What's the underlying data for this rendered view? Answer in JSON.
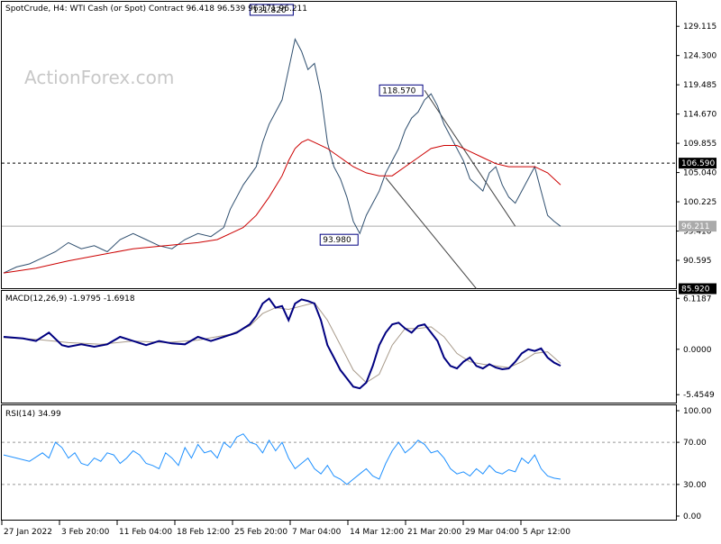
{
  "chart_data": [
    {
      "type": "line",
      "header": "SpotCrude, H4:  WTI Cash (or Spot) Contract  96.418 96.539 96.171 96.211",
      "watermark": "ActionForex.com",
      "ylim": [
        86.0,
        133.0
      ],
      "y_ticks": [
        129.115,
        124.3,
        119.485,
        114.67,
        109.855,
        105.04,
        100.225,
        95.41,
        90.595
      ],
      "x_ticks": [
        "27 Jan 2022",
        "3 Feb 20:00",
        "11 Feb 04:00",
        "18 Feb 12:00",
        "25 Feb 20:00",
        "7 Mar 04:00",
        "14 Mar 12:00",
        "21 Mar 20:00",
        "29 Mar 04:00",
        "5 Apr 12:00"
      ],
      "last_price": 96.211,
      "resistance": 106.59,
      "support": 85.92,
      "annotations": [
        {
          "label": "131.820",
          "value": 131.82,
          "x_bar": 90
        },
        {
          "label": "93.980",
          "value": 93.98,
          "x_bar": 110
        },
        {
          "label": "118.570",
          "value": 118.57,
          "x_bar": 130
        }
      ],
      "series": [
        {
          "kind": "price",
          "color": "#2f4f6f",
          "x": [
            0,
            4,
            8,
            12,
            16,
            20,
            24,
            28,
            32,
            36,
            40,
            44,
            48,
            52,
            56,
            60,
            64,
            68,
            70,
            74,
            78,
            80,
            82,
            86,
            88,
            90,
            92,
            94,
            96,
            98,
            100,
            102,
            104,
            106,
            108,
            110,
            112,
            114,
            116,
            118,
            120,
            122,
            124,
            126,
            128,
            130,
            132,
            134,
            136,
            138,
            140,
            142,
            144,
            146,
            148,
            150,
            152,
            154,
            156,
            158,
            160,
            162,
            164,
            166,
            168,
            170,
            172
          ],
          "values": [
            88.5,
            89.5,
            90,
            91,
            92,
            93.5,
            92.5,
            93,
            92,
            94,
            95,
            94,
            93,
            92.5,
            94,
            95,
            94.5,
            96,
            99,
            103,
            106,
            110,
            113,
            117,
            122,
            127,
            125,
            122,
            123,
            118,
            110,
            106,
            104,
            101,
            97,
            95,
            98,
            100,
            102,
            105,
            107,
            109,
            112,
            114,
            115,
            117,
            118,
            116,
            113,
            111,
            109,
            107,
            104,
            103,
            102,
            105,
            106,
            103,
            101,
            100,
            102,
            104,
            106,
            102,
            98,
            97,
            96.2
          ]
        },
        {
          "kind": "ma",
          "color": "#cc0000",
          "x": [
            0,
            10,
            20,
            30,
            40,
            50,
            60,
            66,
            70,
            74,
            78,
            82,
            86,
            88,
            90,
            92,
            94,
            96,
            100,
            104,
            108,
            112,
            116,
            120,
            124,
            128,
            132,
            136,
            140,
            144,
            148,
            152,
            156,
            160,
            164,
            168,
            172
          ],
          "values": [
            88.5,
            89.3,
            90.5,
            91.5,
            92.5,
            93,
            93.5,
            94,
            95,
            96,
            98,
            101,
            104.5,
            107,
            109,
            110,
            110.5,
            110,
            109,
            107.5,
            106,
            105,
            104.5,
            104.5,
            106,
            107.5,
            109,
            109.5,
            109.5,
            108.5,
            107.5,
            106.5,
            106,
            106,
            106,
            105,
            103
          ]
        },
        {
          "kind": "channel",
          "color": "#444444",
          "x": [
            130,
            158
          ],
          "values": [
            118.57,
            96.2
          ]
        },
        {
          "kind": "channel",
          "color": "#444444",
          "x": [
            118,
            146
          ],
          "values": [
            104.2,
            85.92
          ]
        }
      ]
    },
    {
      "type": "line",
      "header": "MACD(12,26,9) -1.9795 -1.6918",
      "ylim": [
        -6.3,
        6.8
      ],
      "y_ticks": [
        6.1187,
        0.0,
        -5.4549
      ],
      "series": [
        {
          "kind": "macd",
          "color": "#000080",
          "x": [
            0,
            6,
            10,
            14,
            18,
            20,
            24,
            28,
            32,
            36,
            40,
            44,
            48,
            52,
            56,
            60,
            64,
            68,
            72,
            76,
            78,
            80,
            82,
            84,
            86,
            88,
            90,
            92,
            94,
            96,
            98,
            100,
            102,
            104,
            106,
            108,
            110,
            112,
            114,
            116,
            118,
            120,
            122,
            124,
            126,
            128,
            130,
            132,
            134,
            136,
            138,
            140,
            142,
            144,
            146,
            148,
            150,
            152,
            154,
            156,
            158,
            160,
            162,
            164,
            166,
            168,
            170,
            172
          ],
          "values": [
            1.5,
            1.3,
            1.0,
            2.0,
            0.5,
            0.3,
            0.6,
            0.3,
            0.6,
            1.5,
            1.0,
            0.5,
            1.0,
            0.7,
            0.6,
            1.5,
            1.0,
            1.5,
            2.0,
            3.0,
            4.0,
            5.5,
            6.1,
            5.0,
            5.2,
            3.5,
            5.5,
            6.0,
            5.8,
            5.5,
            3.5,
            0.5,
            -1.0,
            -2.5,
            -3.5,
            -4.5,
            -4.7,
            -4.0,
            -2.0,
            0.5,
            2.0,
            3.0,
            3.2,
            2.5,
            2.0,
            2.8,
            3.0,
            2.0,
            1.0,
            -1.0,
            -2.0,
            -2.3,
            -1.5,
            -1.0,
            -2.0,
            -2.3,
            -1.8,
            -2.2,
            -2.4,
            -2.3,
            -1.5,
            -0.5,
            0.0,
            -0.2,
            0.1,
            -1.0,
            -1.6,
            -1.98
          ]
        },
        {
          "kind": "signal",
          "color": "#a89a8a",
          "x": [
            0,
            10,
            20,
            30,
            40,
            50,
            60,
            70,
            76,
            80,
            84,
            88,
            92,
            96,
            100,
            104,
            108,
            112,
            116,
            120,
            124,
            128,
            132,
            136,
            140,
            144,
            148,
            152,
            156,
            160,
            164,
            168,
            172
          ],
          "values": [
            1.4,
            1.2,
            0.8,
            0.6,
            1.0,
            0.8,
            1.1,
            1.8,
            2.8,
            4.3,
            5.0,
            4.8,
            5.2,
            5.6,
            3.5,
            0.5,
            -2.5,
            -4.0,
            -3.0,
            0.5,
            2.5,
            2.5,
            2.7,
            1.5,
            -0.5,
            -1.5,
            -1.8,
            -2.0,
            -2.2,
            -1.5,
            -0.5,
            -0.3,
            -1.69
          ]
        }
      ]
    },
    {
      "type": "line",
      "header": "RSI(14) 34.99",
      "ylim": [
        0,
        100
      ],
      "y_ticks": [
        100.0,
        70.0,
        30.0,
        0.0
      ],
      "levels": [
        70,
        30
      ],
      "series": [
        {
          "kind": "rsi",
          "color": "#1e90ff",
          "x": [
            0,
            4,
            8,
            12,
            14,
            16,
            18,
            20,
            22,
            24,
            26,
            28,
            30,
            32,
            34,
            36,
            38,
            40,
            42,
            44,
            46,
            48,
            50,
            52,
            54,
            56,
            58,
            60,
            62,
            64,
            66,
            68,
            70,
            72,
            74,
            76,
            78,
            80,
            82,
            84,
            86,
            88,
            90,
            92,
            94,
            96,
            98,
            100,
            102,
            104,
            106,
            108,
            110,
            112,
            114,
            116,
            118,
            120,
            122,
            124,
            126,
            128,
            130,
            132,
            134,
            136,
            138,
            140,
            142,
            144,
            146,
            148,
            150,
            152,
            154,
            156,
            158,
            160,
            162,
            164,
            166,
            168,
            170,
            172
          ],
          "values": [
            58,
            55,
            52,
            60,
            55,
            70,
            65,
            55,
            60,
            50,
            48,
            55,
            52,
            60,
            58,
            50,
            55,
            62,
            58,
            50,
            48,
            45,
            60,
            55,
            48,
            65,
            55,
            68,
            60,
            62,
            55,
            70,
            65,
            75,
            78,
            70,
            68,
            60,
            72,
            62,
            70,
            55,
            45,
            50,
            55,
            45,
            40,
            48,
            38,
            35,
            30,
            35,
            40,
            45,
            38,
            35,
            50,
            62,
            70,
            60,
            65,
            72,
            68,
            60,
            62,
            55,
            45,
            40,
            42,
            38,
            45,
            40,
            48,
            42,
            40,
            44,
            42,
            55,
            50,
            58,
            45,
            38,
            36,
            35
          ]
        }
      ]
    }
  ]
}
